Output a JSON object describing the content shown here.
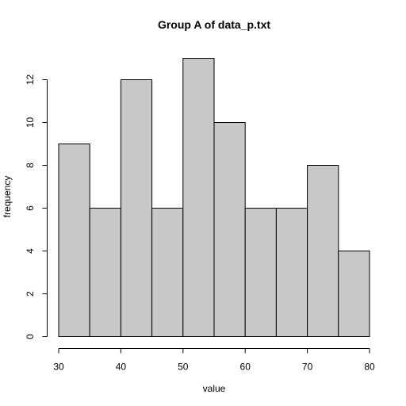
{
  "chart_data": {
    "type": "bar",
    "title": "Group A of data_p.txt",
    "xlabel": "value",
    "ylabel": "frequency",
    "bins": [
      {
        "start": 30,
        "end": 35,
        "count": 9
      },
      {
        "start": 35,
        "end": 40,
        "count": 6
      },
      {
        "start": 40,
        "end": 45,
        "count": 12
      },
      {
        "start": 45,
        "end": 50,
        "count": 6
      },
      {
        "start": 50,
        "end": 55,
        "count": 13
      },
      {
        "start": 55,
        "end": 60,
        "count": 10
      },
      {
        "start": 60,
        "end": 65,
        "count": 6
      },
      {
        "start": 65,
        "end": 70,
        "count": 6
      },
      {
        "start": 70,
        "end": 75,
        "count": 8
      },
      {
        "start": 75,
        "end": 80,
        "count": 4
      }
    ],
    "xlim": [
      30,
      80
    ],
    "ylim": [
      0,
      13
    ],
    "x_ticks": [
      30,
      40,
      50,
      60,
      70,
      80
    ],
    "y_ticks": [
      0,
      2,
      4,
      6,
      8,
      10,
      12
    ],
    "grid": false,
    "legend": "none",
    "bar_color": "#c8c8c8",
    "edge_color": "#000000"
  }
}
